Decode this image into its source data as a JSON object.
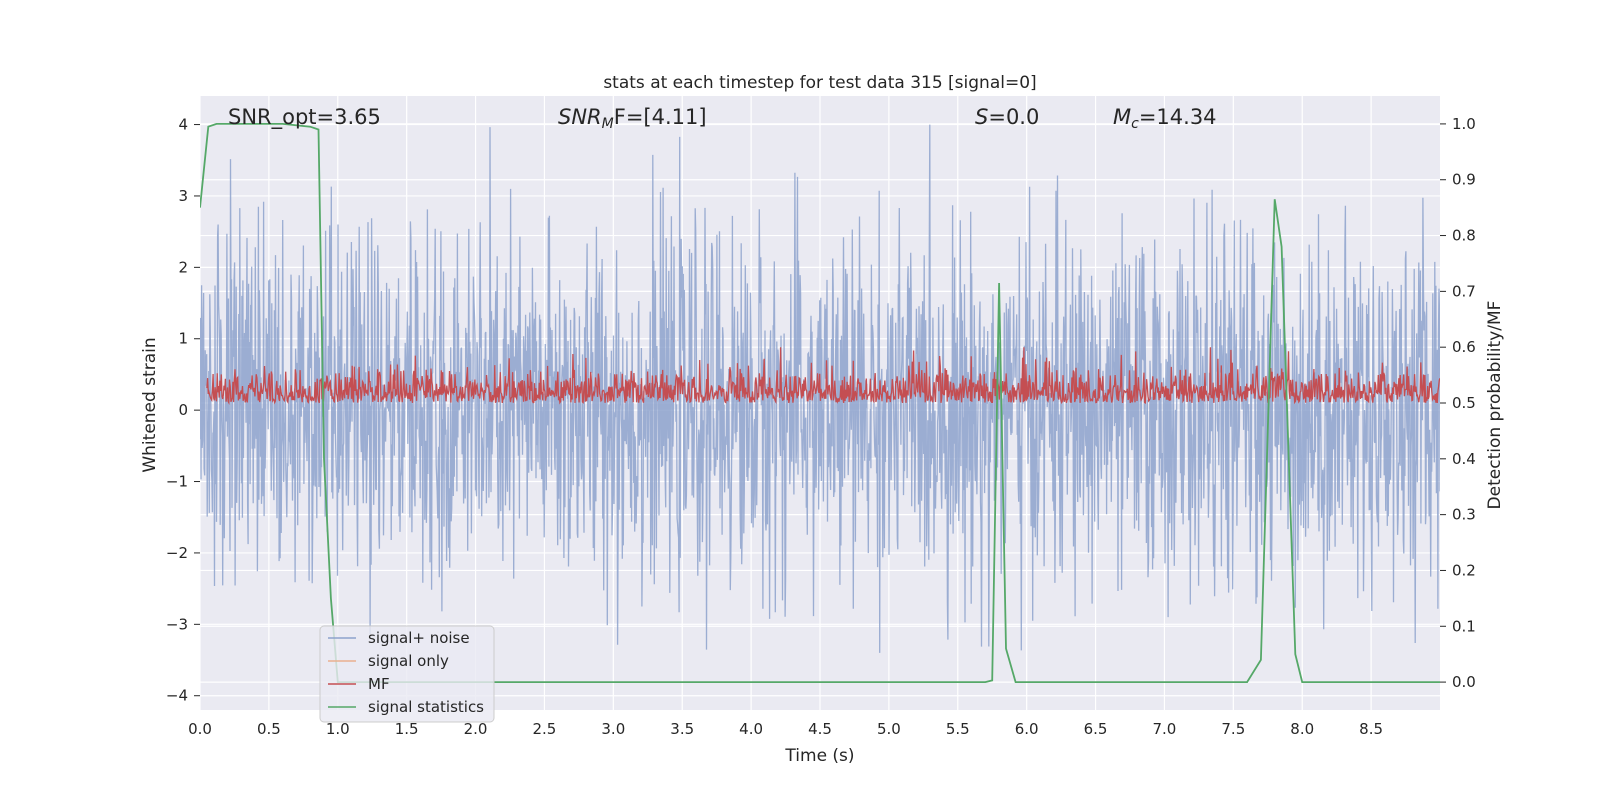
{
  "chart_data": {
    "type": "line",
    "title": "stats at each timestep for test data 315 [signal=0]",
    "xlabel": "Time (s)",
    "ylabel_left": "Whitened strain",
    "ylabel_right": "Detection probability/MF",
    "xlim": [
      0.0,
      9.0
    ],
    "ylim_left": [
      -4.2,
      4.4
    ],
    "ylim_right": [
      -0.05,
      1.05
    ],
    "x_ticks": [
      "0.0",
      "0.5",
      "1.0",
      "1.5",
      "2.0",
      "2.5",
      "3.0",
      "3.5",
      "4.0",
      "4.5",
      "5.0",
      "5.5",
      "6.0",
      "6.5",
      "7.0",
      "7.5",
      "8.0",
      "8.5"
    ],
    "y_ticks_left": [
      "4",
      "3",
      "2",
      "1",
      "0",
      "−1",
      "−2",
      "−3",
      "−4"
    ],
    "y_ticks_right": [
      "1.0",
      "0.9",
      "0.8",
      "0.7",
      "0.6",
      "0.5",
      "0.4",
      "0.3",
      "0.2",
      "0.1",
      "0.0"
    ],
    "grid": true,
    "legend_position": "lower-left",
    "annotations": {
      "snr_opt": "SNR_opt=3.65",
      "snr_mf_base": "SNR",
      "snr_mf_sub": "M",
      "snr_mf_rest": "F=[4.11]",
      "s_italic": "S",
      "s_rest": "=0.0",
      "mc_base": "M",
      "mc_sub": "c",
      "mc_rest": "=14.34"
    },
    "series": [
      {
        "name": "signal+ noise",
        "color": "#8da2cc",
        "axis": "left",
        "noise_std": 1.2,
        "peak_range": [
          -3.4,
          4.0
        ]
      },
      {
        "name": "signal only",
        "color": "#eab08f",
        "axis": "left",
        "values": "all zero (hidden)"
      },
      {
        "name": "MF",
        "color": "#c44e52",
        "axis": "right",
        "baseline": 0.5,
        "range": [
          0.5,
          0.6
        ]
      },
      {
        "name": "signal statistics",
        "color": "#55a868",
        "axis": "right",
        "x": [
          0.0,
          0.06,
          0.12,
          0.2,
          0.4,
          0.6,
          0.8,
          0.86,
          0.9,
          0.95,
          1.0,
          1.05,
          5.7,
          5.75,
          5.8,
          5.85,
          5.92,
          7.6,
          7.7,
          7.8,
          7.85,
          7.95,
          8.0,
          9.0
        ],
        "y": [
          0.85,
          0.995,
          1.0,
          1.0,
          1.0,
          1.0,
          0.995,
          0.99,
          0.4,
          0.15,
          0.0,
          0.0,
          0.0,
          0.003,
          0.715,
          0.06,
          0.0,
          0.0,
          0.04,
          0.865,
          0.78,
          0.05,
          0.0,
          0.0
        ]
      }
    ]
  }
}
